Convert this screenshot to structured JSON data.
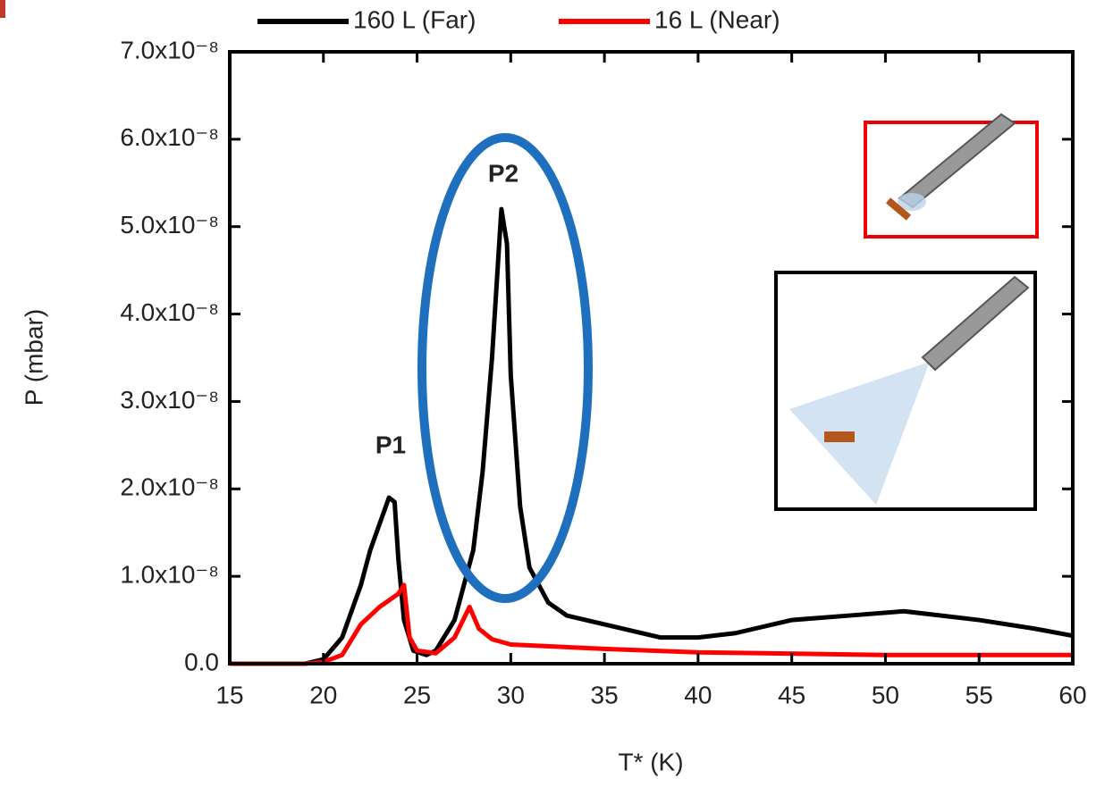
{
  "chart_data": {
    "type": "line",
    "xlabel": "T* (K)",
    "ylabel": "P (mbar)",
    "xlim": [
      15,
      60
    ],
    "xticks": [
      15,
      20,
      25,
      30,
      35,
      40,
      45,
      50,
      55,
      60
    ],
    "ylim": [
      0,
      7e-08
    ],
    "yticks": [
      {
        "value": 0,
        "label": "0.0"
      },
      {
        "value": 1e-08,
        "label": "1.0x10⁻⁸"
      },
      {
        "value": 2e-08,
        "label": "2.0x10⁻⁸"
      },
      {
        "value": 3e-08,
        "label": "3.0x10⁻⁸"
      },
      {
        "value": 4e-08,
        "label": "4.0x10⁻⁸"
      },
      {
        "value": 5e-08,
        "label": "5.0x10⁻⁸"
      },
      {
        "value": 6e-08,
        "label": "6.0x10⁻⁸"
      },
      {
        "value": 7e-08,
        "label": "7.0x10⁻⁸"
      }
    ],
    "legend": "top",
    "annotations": [
      "P1",
      "P2"
    ],
    "series": [
      {
        "name": "160 L (Far)",
        "color": "#000000",
        "x": [
          15,
          19,
          20,
          21,
          22,
          22.5,
          23,
          23.5,
          23.8,
          24,
          24.3,
          24.8,
          25.5,
          26,
          27,
          28,
          28.5,
          29,
          29.5,
          29.8,
          30,
          30.5,
          31,
          32,
          33,
          35,
          38,
          40,
          42,
          45,
          48,
          51,
          55,
          58,
          60
        ],
        "values": [
          0,
          0,
          5e-10,
          3e-09,
          9e-09,
          1.3e-08,
          1.6e-08,
          1.9e-08,
          1.85e-08,
          1.2e-08,
          5e-09,
          1.5e-09,
          1e-09,
          1.5e-09,
          5e-09,
          1.3e-08,
          2.2e-08,
          3.5e-08,
          5.2e-08,
          4.8e-08,
          3.3e-08,
          1.8e-08,
          1.1e-08,
          7e-09,
          5.5e-09,
          4.5e-09,
          3e-09,
          3e-09,
          3.5e-09,
          5e-09,
          5.5e-09,
          6e-09,
          5e-09,
          4e-09,
          3.2e-09
        ]
      },
      {
        "name": "16 L (Near)",
        "color": "#ff0000",
        "x": [
          15,
          19,
          20,
          21,
          22,
          23,
          24,
          24.3,
          24.6,
          25,
          26,
          27,
          27.8,
          28.3,
          29,
          30,
          35,
          40,
          50,
          60
        ],
        "values": [
          0,
          0,
          2e-10,
          1e-09,
          4.5e-09,
          6.5e-09,
          8e-09,
          9e-09,
          3e-09,
          1.5e-09,
          1.2e-09,
          3e-09,
          6.5e-09,
          4e-09,
          2.8e-09,
          2.2e-09,
          1.7e-09,
          1.3e-09,
          1e-09,
          1e-09
        ]
      }
    ]
  }
}
